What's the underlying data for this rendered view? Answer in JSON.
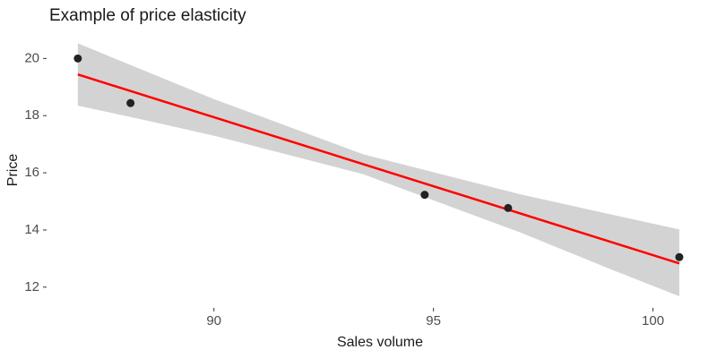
{
  "chart_data": {
    "type": "scatter",
    "title": "Example of price elasticity",
    "x_label": "Sales volume",
    "y_label": "Price",
    "x": [
      86.9,
      88.1,
      94.8,
      96.7,
      100.6
    ],
    "y": [
      20.0,
      18.44,
      15.23,
      14.77,
      13.05
    ],
    "point_color": "#222222",
    "fit": {
      "x": [
        86.9,
        100.6
      ],
      "values": [
        19.44,
        12.83
      ],
      "color": "#ff0000"
    },
    "band": {
      "x": [
        86.9,
        88.5,
        90,
        93.4,
        97,
        99,
        100.6
      ],
      "upper": [
        20.53,
        19.52,
        18.58,
        16.65,
        15.24,
        14.56,
        14.02
      ],
      "lower": [
        18.35,
        17.82,
        17.3,
        15.95,
        13.9,
        12.65,
        11.68
      ],
      "color": "#d3d3d3"
    },
    "xlim": [
      86.25,
      101.05
    ],
    "xticks": [
      90,
      95,
      100
    ],
    "ylim": [
      11.4,
      20.95
    ],
    "yticks": [
      12,
      14,
      16,
      18,
      20
    ],
    "grid": false
  }
}
